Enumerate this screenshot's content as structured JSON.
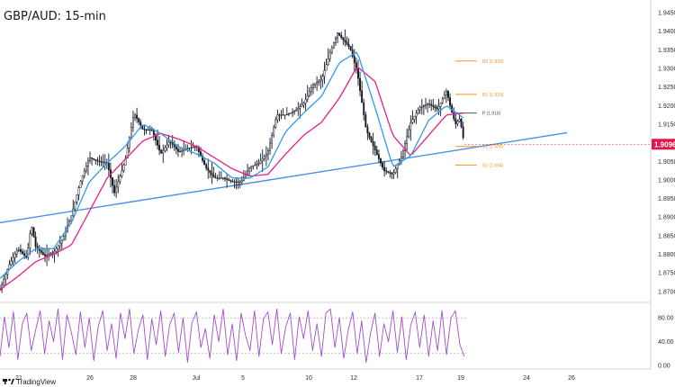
{
  "title": "GBP/AUD: 15-min",
  "brand": {
    "name": "TradingView",
    "icon": "tradingview-logo-icon"
  },
  "colors": {
    "candles": "#131722",
    "ema_fast": "#2f9be8",
    "ema_slow": "#e91e8c",
    "trendline": "#4a90e2",
    "pivot": "#f7931e",
    "pivot_p": "#555555",
    "price_tag": "#e0154c",
    "oscillator": "#a34ec9"
  },
  "chart_data": [
    {
      "type": "line",
      "title": "GBP/AUD: 15-min",
      "x_ticks": [
        "21",
        "26",
        "28",
        "Jul",
        "5",
        "10",
        "12",
        "17",
        "19",
        "24",
        "26"
      ],
      "y_ticks": [
        "1.94500",
        "1.94000",
        "1.93500",
        "1.93000",
        "1.92500",
        "1.92000",
        "1.91500",
        "1.91000",
        "1.90500",
        "1.90000",
        "1.89500",
        "1.89000",
        "1.88500",
        "1.88000",
        "1.87500",
        "1.87000"
      ],
      "ylim": [
        1.8685,
        1.9455
      ],
      "x_range": [
        0,
        640
      ],
      "current_price": "1.9096",
      "series": [
        {
          "kind": "price",
          "x": [
            0,
            10,
            20,
            30,
            35,
            40,
            50,
            60,
            70,
            80,
            90,
            100,
            110,
            120,
            128,
            140,
            150,
            160,
            170,
            180,
            190,
            200,
            210,
            220,
            230,
            240,
            250,
            260,
            270,
            280,
            290,
            300,
            310,
            320,
            330,
            340,
            350,
            360,
            370,
            378,
            385,
            392,
            400,
            410,
            420,
            430,
            440,
            450,
            460,
            470,
            480,
            490,
            500,
            505,
            510,
            515,
            520
          ],
          "values": [
            1.8705,
            1.877,
            1.8815,
            1.879,
            1.888,
            1.882,
            1.8795,
            1.8805,
            1.884,
            1.8905,
            1.8995,
            1.906,
            1.905,
            1.9045,
            1.8965,
            1.905,
            1.918,
            1.9135,
            1.9135,
            1.907,
            1.9105,
            1.9075,
            1.9085,
            1.909,
            1.9035,
            1.9005,
            1.9005,
            1.8995,
            1.8995,
            1.9035,
            1.9045,
            1.9075,
            1.9175,
            1.9175,
            1.9185,
            1.9205,
            1.9255,
            1.927,
            1.9345,
            1.9395,
            1.9375,
            1.9355,
            1.929,
            1.9135,
            1.908,
            1.9025,
            1.9015,
            1.9065,
            1.9155,
            1.9195,
            1.9205,
            1.919,
            1.924,
            1.919,
            1.915,
            1.9165,
            1.9096
          ]
        },
        {
          "kind": "ema_fast",
          "x": [
            0,
            20,
            40,
            60,
            80,
            100,
            120,
            140,
            160,
            180,
            200,
            220,
            240,
            260,
            280,
            300,
            320,
            340,
            360,
            380,
            400,
            420,
            440,
            460,
            480,
            500,
            520
          ],
          "values": [
            1.8735,
            1.878,
            1.8815,
            1.8815,
            1.8885,
            1.8995,
            1.9045,
            1.909,
            1.915,
            1.9125,
            1.909,
            1.907,
            1.9045,
            1.9005,
            1.9005,
            1.9035,
            1.913,
            1.918,
            1.9225,
            1.9315,
            1.9345,
            1.9195,
            1.9035,
            1.9065,
            1.916,
            1.92,
            1.9165
          ]
        },
        {
          "kind": "ema_slow",
          "x": [
            0,
            20,
            40,
            60,
            80,
            100,
            120,
            140,
            160,
            180,
            200,
            220,
            240,
            260,
            280,
            300,
            320,
            340,
            360,
            380,
            400,
            420,
            440,
            460,
            480,
            500,
            520
          ],
          "values": [
            1.8705,
            1.874,
            1.878,
            1.88,
            1.8825,
            1.8915,
            1.9005,
            1.9055,
            1.9105,
            1.9125,
            1.911,
            1.909,
            1.906,
            1.903,
            1.901,
            1.9015,
            1.907,
            1.912,
            1.9155,
            1.922,
            1.9305,
            1.9265,
            1.912,
            1.9065,
            1.912,
            1.9175,
            1.918
          ]
        },
        {
          "kind": "trendline",
          "x": [
            0,
            635
          ],
          "values": [
            1.8885,
            1.9127
          ]
        }
      ],
      "pivot_levels": [
        {
          "label": "R2 (1.932)",
          "value": 1.932
        },
        {
          "label": "R1 (1.923)",
          "value": 1.923
        },
        {
          "label": "P (1.918)",
          "value": 1.918
        },
        {
          "label": "S1 (1.909)",
          "value": 1.909
        },
        {
          "label": "S2 (1.904)",
          "value": 1.904
        }
      ],
      "pivot_x": [
        510,
        534
      ]
    },
    {
      "type": "line",
      "y_ticks": [
        "80.00",
        "40.00",
        "0.00"
      ],
      "ylim": [
        0,
        100
      ],
      "levels": [
        80,
        20
      ],
      "series": [
        {
          "kind": "oscillator",
          "x": [
            0,
            5,
            10,
            15,
            20,
            25,
            30,
            35,
            40,
            45,
            50,
            55,
            60,
            65,
            70,
            75,
            80,
            85,
            90,
            95,
            100,
            105,
            110,
            115,
            120,
            125,
            130,
            135,
            140,
            145,
            150,
            155,
            160,
            165,
            170,
            175,
            180,
            185,
            190,
            195,
            200,
            205,
            210,
            215,
            220,
            225,
            230,
            235,
            240,
            245,
            250,
            255,
            260,
            265,
            270,
            275,
            280,
            285,
            290,
            295,
            300,
            305,
            310,
            315,
            320,
            325,
            330,
            335,
            340,
            345,
            350,
            355,
            360,
            365,
            370,
            375,
            380,
            385,
            390,
            395,
            400,
            405,
            410,
            415,
            420,
            425,
            430,
            435,
            440,
            445,
            450,
            455,
            460,
            465,
            470,
            475,
            480,
            485,
            490,
            495,
            500,
            505,
            510,
            515,
            520
          ],
          "values": [
            15,
            82,
            30,
            90,
            10,
            70,
            88,
            25,
            60,
            92,
            20,
            75,
            40,
            95,
            10,
            85,
            55,
            18,
            90,
            30,
            80,
            8,
            65,
            92,
            25,
            70,
            12,
            88,
            45,
            95,
            20,
            60,
            85,
            10,
            78,
            35,
            92,
            15,
            68,
            88,
            22,
            80,
            5,
            72,
            90,
            30,
            62,
            12,
            85,
            40,
            95,
            18,
            70,
            8,
            88,
            50,
            25,
            92,
            15,
            78,
            90,
            35,
            95,
            20,
            65,
            88,
            10,
            82,
            45,
            92,
            25,
            70,
            15,
            88,
            95,
            30,
            80,
            12,
            60,
            90,
            20,
            75,
            5,
            55,
            88,
            15,
            70,
            40,
            92,
            22,
            82,
            10,
            68,
            90,
            30,
            85,
            15,
            75,
            25,
            92,
            18,
            80,
            92,
            35,
            15
          ]
        }
      ]
    }
  ]
}
